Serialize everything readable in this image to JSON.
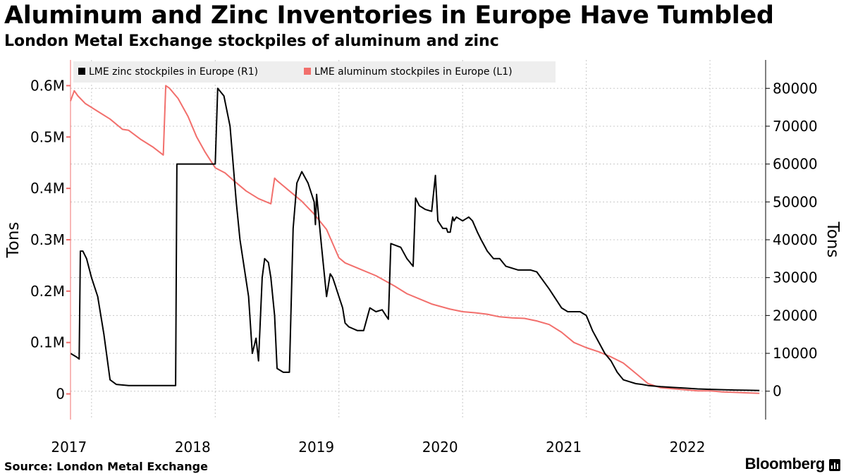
{
  "title": "Aluminum and Zinc Inventories in Europe Have Tumbled",
  "subtitle": "London Metal Exchange stockpiles of aluminum and zinc",
  "source": "Source: London Metal Exchange",
  "brand": "Bloomberg",
  "colors": {
    "aluminum": "#f26f6c",
    "zinc": "#000000",
    "grid": "#c8c8c8"
  },
  "chart_data": {
    "type": "line",
    "xlabel": "",
    "ylabel_left": "Tons",
    "ylabel_right": "Tons",
    "xlim": [
      2016.83,
      2022.45
    ],
    "ylim_left": [
      -50000,
      650000
    ],
    "ylim_right": [
      -7500,
      87500
    ],
    "x_ticks": [
      {
        "label": "2017",
        "value": 2017.0
      },
      {
        "label": "2018",
        "value": 2018.0
      },
      {
        "label": "2019",
        "value": 2019.0
      },
      {
        "label": "2020",
        "value": 2020.0
      },
      {
        "label": "2021",
        "value": 2021.0
      },
      {
        "label": "2022",
        "value": 2022.0
      }
    ],
    "y_left_ticks": [
      {
        "label": "0",
        "value": 0
      },
      {
        "label": "0.1M",
        "value": 100000
      },
      {
        "label": "0.2M",
        "value": 200000
      },
      {
        "label": "0.3M",
        "value": 300000
      },
      {
        "label": "0.4M",
        "value": 400000
      },
      {
        "label": "0.5M",
        "value": 500000
      },
      {
        "label": "0.6M",
        "value": 600000
      }
    ],
    "y_right_ticks": [
      {
        "label": "0",
        "value": 0
      },
      {
        "label": "10000",
        "value": 10000
      },
      {
        "label": "20000",
        "value": 20000
      },
      {
        "label": "30000",
        "value": 30000
      },
      {
        "label": "40000",
        "value": 40000
      },
      {
        "label": "50000",
        "value": 50000
      },
      {
        "label": "60000",
        "value": 60000
      },
      {
        "label": "70000",
        "value": 70000
      },
      {
        "label": "80000",
        "value": 80000
      }
    ],
    "legend": [
      {
        "label": "LME zinc stockpiles in Europe (R1)",
        "color": "#000000"
      },
      {
        "label": "LME aluminum stockpiles in Europe (L1)",
        "color": "#f26f6c"
      }
    ],
    "series": [
      {
        "name": "LME aluminum stockpiles in Europe (L1)",
        "axis": "left",
        "x": [
          2016.83,
          2016.86,
          2016.89,
          2016.95,
          2017.05,
          2017.15,
          2017.25,
          2017.3,
          2017.4,
          2017.5,
          2017.58,
          2017.6,
          2017.63,
          2017.7,
          2017.78,
          2017.85,
          2017.92,
          2018.0,
          2018.08,
          2018.15,
          2018.25,
          2018.35,
          2018.45,
          2018.48,
          2018.5,
          2018.55,
          2018.6,
          2018.7,
          2018.8,
          2018.9,
          2019.0,
          2019.05,
          2019.15,
          2019.3,
          2019.45,
          2019.55,
          2019.65,
          2019.75,
          2019.9,
          2020.0,
          2020.1,
          2020.2,
          2020.3,
          2020.4,
          2020.5,
          2020.6,
          2020.7,
          2020.8,
          2020.9,
          2021.0,
          2021.1,
          2021.2,
          2021.3,
          2021.4,
          2021.5,
          2021.6,
          2021.7,
          2021.8,
          2021.9,
          2022.0,
          2022.1,
          2022.2,
          2022.3,
          2022.4
        ],
        "y": [
          570000,
          590000,
          580000,
          565000,
          550000,
          535000,
          515000,
          513000,
          495000,
          480000,
          465000,
          600000,
          595000,
          575000,
          540000,
          500000,
          470000,
          440000,
          430000,
          415000,
          395000,
          380000,
          370000,
          420000,
          415000,
          405000,
          395000,
          375000,
          350000,
          320000,
          265000,
          255000,
          245000,
          230000,
          210000,
          195000,
          185000,
          175000,
          165000,
          160000,
          158000,
          155000,
          150000,
          148000,
          147000,
          142000,
          135000,
          120000,
          100000,
          90000,
          82000,
          72000,
          60000,
          40000,
          20000,
          12000,
          10000,
          8000,
          6000,
          6000,
          4000,
          3000,
          2000,
          1000
        ]
      },
      {
        "name": "LME zinc stockpiles in Europe (R1)",
        "axis": "right",
        "x": [
          2016.83,
          2016.88,
          2016.9,
          2016.91,
          2016.93,
          2016.96,
          2017.0,
          2017.05,
          2017.1,
          2017.15,
          2017.2,
          2017.3,
          2017.4,
          2017.55,
          2017.68,
          2017.69,
          2017.8,
          2017.9,
          2017.95,
          2018.0,
          2018.02,
          2018.07,
          2018.12,
          2018.17,
          2018.2,
          2018.27,
          2018.3,
          2018.33,
          2018.35,
          2018.38,
          2018.4,
          2018.43,
          2018.45,
          2018.48,
          2018.5,
          2018.55,
          2018.6,
          2018.63,
          2018.66,
          2018.7,
          2018.75,
          2018.8,
          2018.81,
          2018.82,
          2018.84,
          2018.86,
          2018.9,
          2018.93,
          2018.95,
          2018.97,
          2019.0,
          2019.03,
          2019.05,
          2019.08,
          2019.15,
          2019.2,
          2019.25,
          2019.3,
          2019.35,
          2019.38,
          2019.4,
          2019.42,
          2019.5,
          2019.55,
          2019.6,
          2019.62,
          2019.65,
          2019.7,
          2019.75,
          2019.78,
          2019.8,
          2019.84,
          2019.87,
          2019.88,
          2019.9,
          2019.92,
          2019.93,
          2019.95,
          2020.0,
          2020.05,
          2020.08,
          2020.12,
          2020.15,
          2020.2,
          2020.25,
          2020.3,
          2020.35,
          2020.45,
          2020.5,
          2020.55,
          2020.6,
          2020.7,
          2020.8,
          2020.85,
          2020.9,
          2020.95,
          2021.0,
          2021.05,
          2021.1,
          2021.15,
          2021.2,
          2021.25,
          2021.3,
          2021.35,
          2021.4,
          2021.45,
          2021.5,
          2021.6,
          2021.7,
          2021.8,
          2021.9,
          2022.0,
          2022.1,
          2022.2,
          2022.3,
          2022.4
        ],
        "y": [
          10000,
          9000,
          8500,
          37000,
          37000,
          35000,
          30000,
          25000,
          15000,
          3000,
          1800,
          1500,
          1500,
          1500,
          1500,
          60000,
          60000,
          60000,
          60000,
          60000,
          80000,
          78000,
          70000,
          50000,
          40000,
          25000,
          10000,
          14000,
          8000,
          30000,
          35000,
          34000,
          30000,
          20000,
          6000,
          5000,
          5000,
          43000,
          55000,
          58000,
          55000,
          50000,
          44000,
          52000,
          45000,
          38000,
          25000,
          31000,
          30000,
          28000,
          25000,
          22000,
          18000,
          17000,
          16000,
          16000,
          22000,
          21000,
          21500,
          20000,
          19000,
          39000,
          38000,
          35000,
          33000,
          51000,
          49000,
          48000,
          47500,
          57000,
          45000,
          43000,
          43000,
          42000,
          42000,
          46000,
          45000,
          46000,
          45000,
          46000,
          45000,
          42000,
          40000,
          37000,
          35000,
          35000,
          33000,
          32000,
          32000,
          32000,
          31500,
          27000,
          22000,
          21000,
          21000,
          21000,
          20000,
          16000,
          13000,
          10000,
          8000,
          5000,
          3000,
          2500,
          2000,
          1800,
          1500,
          1200,
          1000,
          800,
          600,
          500,
          400,
          300,
          250,
          200
        ]
      }
    ]
  }
}
